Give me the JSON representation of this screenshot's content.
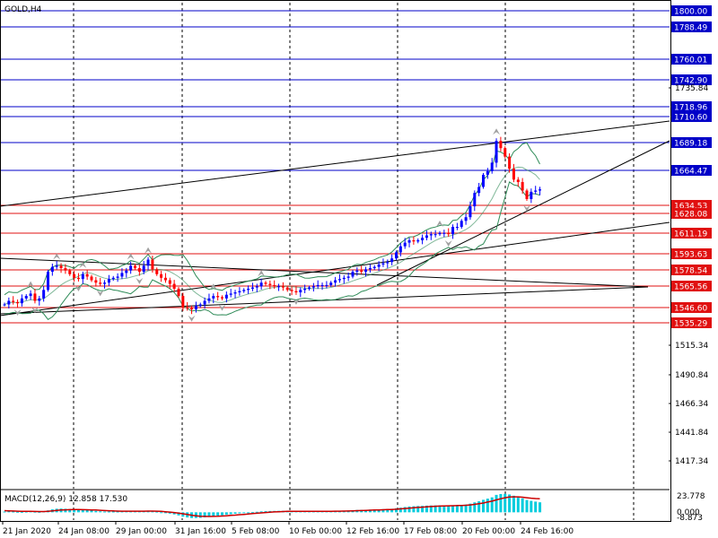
{
  "window": {
    "symbol_label": "GOLD,H4"
  },
  "indicator": {
    "label": "MACD(12,26,9) 12.858 17.530"
  },
  "colors": {
    "background": "#ffffff",
    "grid": "#000000",
    "blue_level": "#0000c8",
    "red_level": "#e01010",
    "trend_line": "#000000",
    "bull_candle": "#0000ff",
    "bear_candle": "#ff0000",
    "band": "#2e8b57",
    "macd_hist": "#00ccdd",
    "macd_signal": "#cc0000",
    "fractal": "#a0a0a0"
  },
  "chart_data": {
    "type": "candlestick",
    "timeframe": "H4",
    "price_axis": {
      "ylim": [
        1401.0,
        1802.0
      ],
      "tick_labels": [
        "1735.84",
        "1515.34",
        "1490.84",
        "1466.34",
        "1441.84",
        "1417.34"
      ]
    },
    "levels_blue": [
      "1800.00",
      "1788.49",
      "1760.01",
      "1742.90",
      "1718.96",
      "1710.60",
      "1689.18",
      "1664.47"
    ],
    "levels_red": [
      "1634.53",
      "1628.08",
      "1611.19",
      "1593.63",
      "1578.54",
      "1565.56",
      "1546.60",
      "1535.29"
    ],
    "x_axis": {
      "labels": [
        "21 Jan 2020",
        "24 Jan 08:00",
        "29 Jan 00:00",
        "31 Jan 16:00",
        "5 Feb 08:00",
        "10 Feb 00:00",
        "12 Feb 16:00",
        "17 Feb 08:00",
        "20 Feb 00:00",
        "24 Feb 16:00"
      ]
    },
    "trend_lines": [
      {
        "from": [
          "21 Jan 2020",
          1628
        ],
        "to": [
          "26 Feb 04:00",
          1710
        ]
      },
      {
        "from": [
          "21 Jan 2020",
          1549
        ],
        "to": [
          "26 Feb 04:00",
          1616
        ]
      },
      {
        "from": [
          "21 Jan 2020",
          1597
        ],
        "to": [
          "12 Feb 16:00",
          1603
        ]
      },
      {
        "from": [
          "14 Feb 12:00",
          1565
        ],
        "to": [
          "26 Feb 04:00",
          1689
        ]
      }
    ],
    "close_series": [
      1553,
      1556,
      1555,
      1554,
      1558,
      1560,
      1562,
      1556,
      1558,
      1565,
      1580,
      1584,
      1585,
      1583,
      1581,
      1578,
      1575,
      1574,
      1578,
      1576,
      1573,
      1571,
      1570,
      1571,
      1574,
      1575,
      1576,
      1579,
      1581,
      1585,
      1583,
      1580,
      1585,
      1590,
      1582,
      1578,
      1575,
      1573,
      1570,
      1566,
      1560,
      1551,
      1550,
      1549,
      1552,
      1553,
      1556,
      1558,
      1560,
      1559,
      1558,
      1561,
      1562,
      1563,
      1564,
      1565,
      1566,
      1567,
      1568,
      1571,
      1570,
      1569,
      1568,
      1568,
      1567,
      1565,
      1564,
      1563,
      1565,
      1566,
      1567,
      1568,
      1569,
      1569,
      1569,
      1571,
      1573,
      1574,
      1575,
      1576,
      1580,
      1581,
      1580,
      1582,
      1583,
      1584,
      1586,
      1587,
      1588,
      1591,
      1596,
      1601,
      1604,
      1606,
      1605,
      1606,
      1608,
      1610,
      1611,
      1611,
      1612,
      1612,
      1611,
      1617,
      1617,
      1622,
      1625,
      1634,
      1645,
      1650,
      1660,
      1663,
      1670,
      1688,
      1682,
      1675,
      1665,
      1656,
      1654,
      1647,
      1640,
      1646,
      1647,
      1648
    ],
    "macd": {
      "name": "MACD(12,26,9)",
      "values_shown": [
        "12.858",
        "17.530"
      ],
      "tick_labels": [
        "23.778",
        "0.000",
        "-8.873"
      ],
      "ylim": [
        -10.0,
        27.0
      ],
      "histogram": [
        1.0,
        1.2,
        1.0,
        0.7,
        0.6,
        0.9,
        1.3,
        0.8,
        0.6,
        1.2,
        2.5,
        3.8,
        4.6,
        4.8,
        4.6,
        4.2,
        3.7,
        3.3,
        3.2,
        2.9,
        2.4,
        1.8,
        1.3,
        1.0,
        1.0,
        1.0,
        1.0,
        1.1,
        1.3,
        1.6,
        1.7,
        1.5,
        1.6,
        2.0,
        1.6,
        0.9,
        0.1,
        -0.8,
        -1.7,
        -2.7,
        -4.0,
        -5.6,
        -6.6,
        -7.3,
        -7.3,
        -7.1,
        -6.5,
        -5.7,
        -4.9,
        -4.2,
        -3.7,
        -3.0,
        -2.4,
        -1.8,
        -1.3,
        -0.8,
        -0.3,
        0.2,
        0.7,
        1.2,
        1.5,
        1.7,
        1.8,
        1.9,
        1.9,
        1.8,
        1.6,
        1.4,
        1.3,
        1.2,
        1.2,
        1.2,
        1.2,
        1.3,
        1.3,
        1.4,
        1.6,
        1.8,
        2.0,
        2.2,
        2.6,
        3.0,
        3.1,
        3.3,
        3.5,
        3.7,
        3.9,
        4.1,
        4.3,
        4.6,
        5.2,
        6.0,
        6.8,
        7.5,
        7.8,
        8.1,
        8.3,
        8.6,
        8.8,
        8.9,
        9.0,
        9.0,
        8.8,
        9.1,
        9.2,
        9.6,
        10.1,
        11.2,
        12.8,
        14.2,
        16.1,
        17.6,
        19.3,
        22.5,
        23.6,
        23.8,
        23.0,
        21.4,
        19.8,
        18.0,
        15.8,
        14.8,
        13.8,
        12.9
      ],
      "signal": [
        2.1,
        1.9,
        1.7,
        1.5,
        1.3,
        1.2,
        1.2,
        1.1,
        1.0,
        1.0,
        1.3,
        1.8,
        2.4,
        2.9,
        3.2,
        3.4,
        3.5,
        3.5,
        3.4,
        3.3,
        3.1,
        2.9,
        2.6,
        2.3,
        2.0,
        1.8,
        1.6,
        1.5,
        1.5,
        1.5,
        1.5,
        1.5,
        1.5,
        1.6,
        1.6,
        1.4,
        1.2,
        0.8,
        0.3,
        -0.3,
        -1.0,
        -1.9,
        -2.8,
        -3.7,
        -4.4,
        -5.0,
        -5.3,
        -5.4,
        -5.3,
        -5.1,
        -4.8,
        -4.4,
        -4.0,
        -3.6,
        -3.1,
        -2.7,
        -2.2,
        -1.7,
        -1.2,
        -0.7,
        -0.3,
        0.1,
        0.5,
        0.8,
        1.0,
        1.2,
        1.3,
        1.3,
        1.3,
        1.3,
        1.3,
        1.3,
        1.3,
        1.3,
        1.3,
        1.3,
        1.4,
        1.5,
        1.6,
        1.7,
        1.9,
        2.1,
        2.3,
        2.5,
        2.7,
        2.9,
        3.1,
        3.3,
        3.5,
        3.7,
        4.0,
        4.4,
        4.9,
        5.4,
        5.9,
        6.3,
        6.7,
        7.1,
        7.5,
        7.8,
        8.0,
        8.2,
        8.4,
        8.5,
        8.7,
        8.9,
        9.1,
        9.5,
        10.2,
        11.0,
        12.0,
        13.2,
        14.4,
        16.0,
        17.5,
        18.8,
        19.7,
        20.0,
        19.9,
        19.5,
        18.8,
        18.2,
        17.8,
        17.5
      ]
    }
  }
}
